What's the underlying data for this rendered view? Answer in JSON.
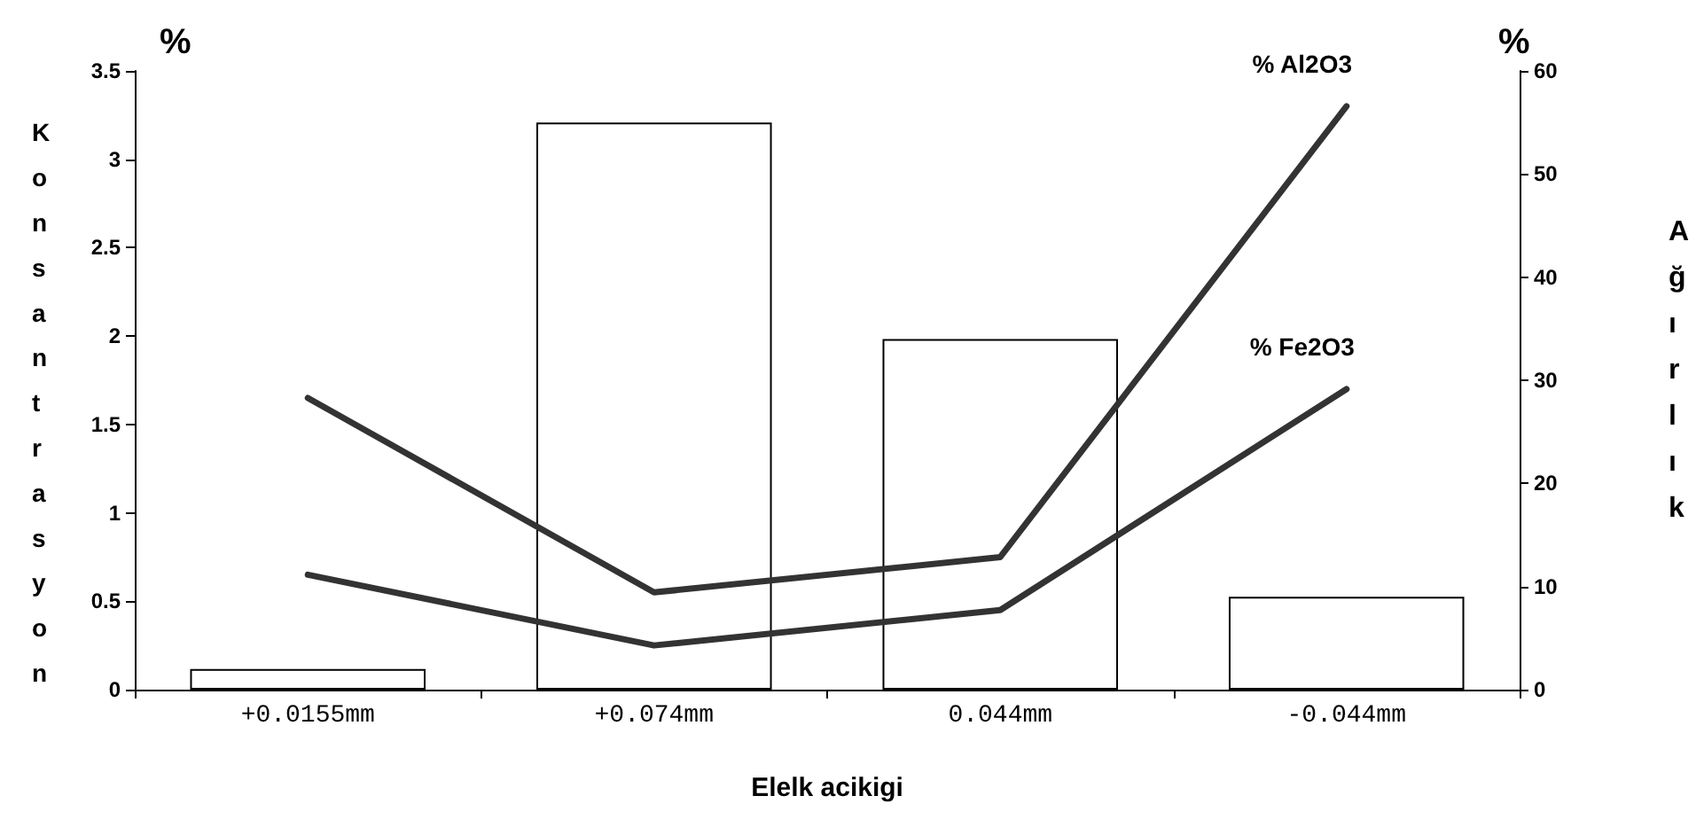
{
  "chart_data": {
    "type": "bar",
    "xlabel": "Elelk acikigi",
    "ylabel": "Konsantrasyon",
    "y2label": "Ağırlık",
    "annotations": [
      "%",
      "%"
    ],
    "categories": [
      "+0.0155mm",
      "+0.074mm",
      "0.044mm",
      "-0.044mm"
    ],
    "series": [
      {
        "axis": "y2",
        "color": "#ffffff",
        "values": [
          2,
          55,
          34,
          9
        ]
      },
      {
        "type": "line",
        "name": "% Al2O3",
        "color": "#333333",
        "values": [
          1.65,
          0.55,
          0.75,
          3.3
        ]
      },
      {
        "type": "line",
        "name": "% Fe2O3",
        "color": "#333333",
        "values": [
          0.65,
          0.25,
          0.45,
          1.7
        ]
      }
    ],
    "ylim": [
      0,
      3.5
    ],
    "yticks": [
      0,
      0.5,
      1,
      1.5,
      2,
      2.5,
      3,
      3.5
    ],
    "y2lim": [
      0,
      60
    ],
    "y2ticks": [
      0,
      10,
      20,
      30,
      40,
      50,
      60
    ],
    "grid": false,
    "legend": false,
    "marker": "none",
    "line_style": "solid"
  }
}
